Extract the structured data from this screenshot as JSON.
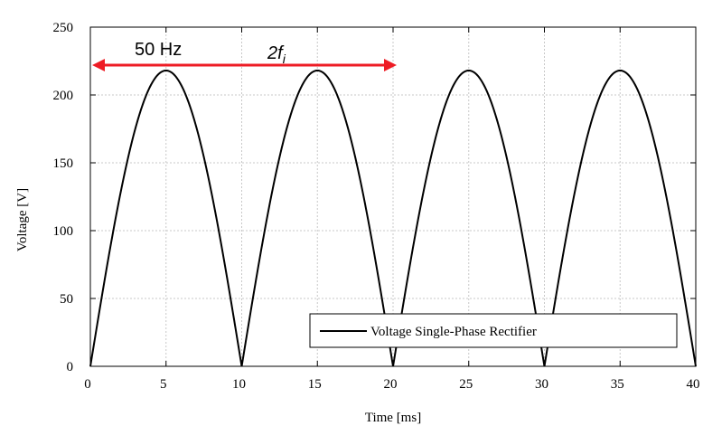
{
  "chart_data": {
    "type": "line",
    "xlabel": "Time [ms]",
    "ylabel": "Voltage [V]",
    "xlim": [
      0,
      40
    ],
    "ylim": [
      0,
      250
    ],
    "xticks": [
      0,
      5,
      10,
      15,
      20,
      25,
      30,
      35,
      40
    ],
    "yticks": [
      0,
      50,
      100,
      150,
      200,
      250
    ],
    "grid": true,
    "legend_position": "bottom-right",
    "series": [
      {
        "name": "Voltage Single-Phase Rectifier",
        "color": "#000000",
        "function": "full-wave rectified sine",
        "peak": 218,
        "period_ms": 10,
        "x": [
          0,
          2.5,
          5,
          7.5,
          10,
          12.5,
          15,
          17.5,
          20,
          22.5,
          25,
          27.5,
          30,
          32.5,
          35,
          37.5,
          40
        ],
        "y": [
          0,
          154,
          218,
          154,
          0,
          154,
          218,
          154,
          0,
          154,
          218,
          154,
          0,
          154,
          218,
          154,
          0
        ]
      }
    ],
    "annotations": [
      {
        "text": "50 Hz",
        "style": "normal"
      },
      {
        "text": "2f",
        "subscript": "i",
        "style": "italic"
      }
    ],
    "arrow": {
      "x_start": 0,
      "x_end": 20,
      "y": 222,
      "color": "#ee1c25"
    }
  }
}
